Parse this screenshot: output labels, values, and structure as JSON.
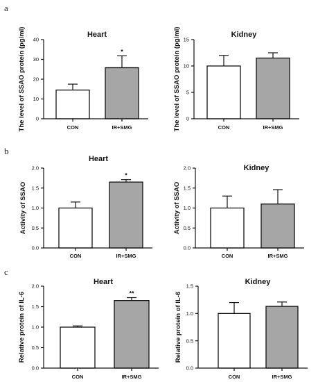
{
  "panel_letters": [
    "a",
    "b",
    "c"
  ],
  "colors": {
    "con_fill": "#ffffff",
    "treat_fill": "#a6a6a6",
    "axis": "#111111"
  },
  "chart_data": [
    {
      "type": "bar",
      "panel": "a",
      "title": "Heart",
      "ylabel": "The level of SSAO protein (pg/ml)",
      "categories": [
        "CON",
        "IR+SMG"
      ],
      "values": [
        14.5,
        25.8
      ],
      "errors": [
        3.0,
        6.0
      ],
      "significance": [
        "",
        "*"
      ],
      "ylim": [
        0,
        40
      ],
      "yticks": [
        "0",
        "10",
        "20",
        "30",
        "40"
      ],
      "grid": false
    },
    {
      "type": "bar",
      "panel": "a",
      "title": "Kidney",
      "ylabel": "The level of SSAO protein (pg/ml)",
      "categories": [
        "CON",
        "IR+SMG"
      ],
      "values": [
        10.0,
        11.5
      ],
      "errors": [
        2.0,
        1.0
      ],
      "significance": [
        "",
        ""
      ],
      "ylim": [
        0,
        15
      ],
      "yticks": [
        "0",
        "5",
        "10",
        "15"
      ],
      "grid": false
    },
    {
      "type": "bar",
      "panel": "b",
      "title": "Heart",
      "ylabel": "Activity of SSAO",
      "categories": [
        "CON",
        "IR+SMG"
      ],
      "values": [
        1.0,
        1.65
      ],
      "errors": [
        0.15,
        0.06
      ],
      "significance": [
        "",
        "*"
      ],
      "ylim": [
        0,
        2.0
      ],
      "yticks": [
        "0.0",
        "0.5",
        "1.0",
        "1.5",
        "2.0"
      ],
      "grid": false
    },
    {
      "type": "bar",
      "panel": "b",
      "title": "Kidney",
      "ylabel": "Activity of SSAO",
      "categories": [
        "CON",
        "IR+SMG"
      ],
      "values": [
        1.0,
        1.1
      ],
      "errors": [
        0.3,
        0.36
      ],
      "significance": [
        "",
        ""
      ],
      "ylim": [
        0,
        2.0
      ],
      "yticks": [
        "0.0",
        "0.5",
        "1.0",
        "1.5",
        "2.0"
      ],
      "grid": false
    },
    {
      "type": "bar",
      "panel": "c",
      "title": "Heart",
      "ylabel": "Relative protein of IL-6",
      "categories": [
        "CON",
        "IR+SMG"
      ],
      "values": [
        1.0,
        1.65
      ],
      "errors": [
        0.03,
        0.07
      ],
      "significance": [
        "",
        "**"
      ],
      "ylim": [
        0,
        2.0
      ],
      "yticks": [
        "0.0",
        "0.5",
        "1.0",
        "1.5",
        "2.0"
      ],
      "grid": false
    },
    {
      "type": "bar",
      "panel": "c",
      "title": "Kidney",
      "ylabel": "Relative protein of IL-6",
      "categories": [
        "CON",
        "IR+SMG"
      ],
      "values": [
        1.0,
        1.13
      ],
      "errors": [
        0.2,
        0.08
      ],
      "significance": [
        "",
        ""
      ],
      "ylim": [
        0,
        1.5
      ],
      "yticks": [
        "0.0",
        "0.5",
        "1.0",
        "1.5"
      ],
      "grid": false
    }
  ]
}
